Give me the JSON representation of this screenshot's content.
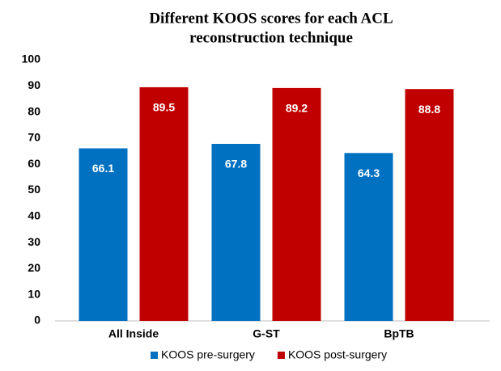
{
  "chart_data": {
    "type": "bar",
    "title": [
      "Different KOOS scores for each ACL",
      "reconstruction technique"
    ],
    "categories": [
      "All Inside",
      "G-ST",
      "BpTB"
    ],
    "series": [
      {
        "name": "KOOS pre-surgery",
        "color": "#0070c0",
        "values": [
          66.1,
          67.8,
          64.3
        ]
      },
      {
        "name": "KOOS post-surgery",
        "color": "#c00000",
        "values": [
          89.5,
          89.2,
          88.8
        ]
      }
    ],
    "ylim": [
      0,
      100
    ],
    "yticks": [
      0,
      10,
      20,
      30,
      40,
      50,
      60,
      70,
      80,
      90,
      100
    ],
    "grid": false,
    "legend": "bottom"
  }
}
